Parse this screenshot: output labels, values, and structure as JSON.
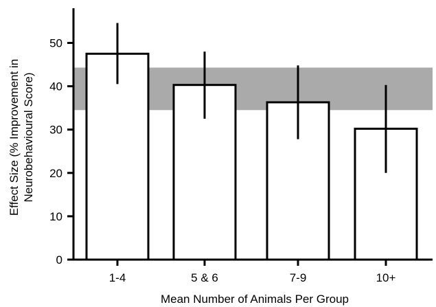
{
  "chart_data": {
    "type": "bar",
    "categories": [
      "1-4",
      "5 & 6",
      "7-9",
      "10+"
    ],
    "values": [
      47.5,
      40.3,
      36.3,
      30.2
    ],
    "error_low": [
      40.5,
      32.5,
      27.8,
      20.0
    ],
    "error_high": [
      54.6,
      48.0,
      44.8,
      40.3
    ],
    "band": {
      "low": 34.5,
      "high": 44.3,
      "color": "#aaaaaa"
    },
    "xlabel": "Mean Number of Animals Per Group",
    "ylabel_line1": "Effect Size (% Improvement in",
    "ylabel_line2": "Neurobehavioural Score)",
    "ylim": [
      0,
      58
    ],
    "yticks": [
      0,
      10,
      20,
      30,
      40,
      50
    ],
    "ytick_labels": [
      "0",
      "10",
      "20",
      "30",
      "40",
      "50"
    ],
    "bar_fill": "#ffffff",
    "bar_stroke": "#000000",
    "grid": false
  }
}
